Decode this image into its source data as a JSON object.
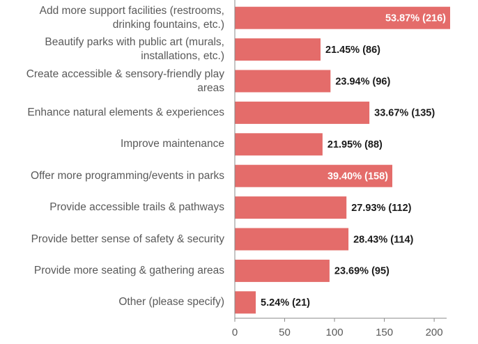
{
  "chart_data": {
    "type": "hbar",
    "categories": [
      "Add more support facilities (restrooms, drinking fountains, etc.)",
      "Beautify parks with public art (murals, installations, etc.)",
      "Create accessible & sensory-friendly play areas",
      "Enhance natural elements & experiences",
      "Improve maintenance",
      "Offer more programming/events in parks",
      "Provide accessible trails & pathways",
      "Provide better sense of safety & security",
      "Provide more seating & gathering areas",
      "Other (please specify)"
    ],
    "values": [
      216,
      86,
      96,
      135,
      88,
      158,
      112,
      114,
      95,
      21
    ],
    "value_labels": [
      "53.87% (216)",
      "21.45% (86)",
      "23.94% (96)",
      "33.67% (135)",
      "21.95% (88)",
      "39.40% (158)",
      "27.93% (112)",
      "28.43% (114)",
      "23.69% (95)",
      "5.24% (21)"
    ],
    "color": "#e46c6a",
    "xlim": [
      0,
      216
    ],
    "xticks": [
      0,
      50,
      100,
      150,
      200
    ]
  }
}
